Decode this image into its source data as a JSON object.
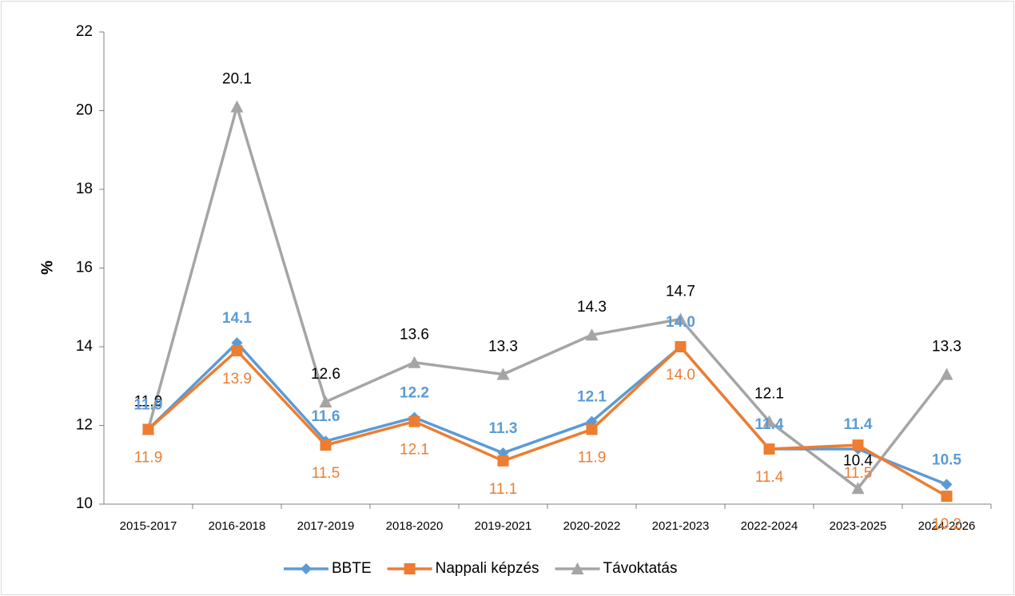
{
  "chart_data": {
    "type": "line",
    "y_label": "%",
    "categories": [
      "2015-2017",
      "2016-2018",
      "2017-2019",
      "2018-2020",
      "2019-2021",
      "2020-2022",
      "2021-2023",
      "2022-2024",
      "2023-2025",
      "2024-2026"
    ],
    "series": [
      {
        "name": "BBTE",
        "color": "#5b9bd5",
        "marker": "diamond",
        "values": [
          11.9,
          14.1,
          11.6,
          12.2,
          11.3,
          12.1,
          14.0,
          11.4,
          11.4,
          10.5
        ],
        "value_labels": [
          "11.9",
          "14.1",
          "11.6",
          "12.2",
          "11.3",
          "12.1",
          "14.0",
          "11.4",
          "11.4",
          "10.5"
        ]
      },
      {
        "name": "Nappali képzés",
        "color": "#ed7d31",
        "marker": "square",
        "values": [
          11.9,
          13.9,
          11.5,
          12.1,
          11.1,
          11.9,
          14.0,
          11.4,
          11.5,
          10.2
        ],
        "value_labels": [
          "11.9",
          "13.9",
          "11.5",
          "12.1",
          "11.1",
          "11.9",
          "14.0",
          "11.4",
          "11.5",
          "10.2"
        ]
      },
      {
        "name": "Távoktatás",
        "color": "#a5a5a5",
        "marker": "triangle",
        "values": [
          11.9,
          20.1,
          12.6,
          13.6,
          13.3,
          14.3,
          14.7,
          12.1,
          10.4,
          13.3
        ],
        "value_labels": [
          "11.9",
          "20.1",
          "12.6",
          "13.6",
          "13.3",
          "14.3",
          "14.7",
          "12.1",
          "10.4",
          "13.3"
        ]
      }
    ],
    "ylim": [
      10,
      22
    ],
    "yticks": [
      10,
      12,
      14,
      16,
      18,
      20,
      22
    ],
    "legend": "bottom"
  }
}
